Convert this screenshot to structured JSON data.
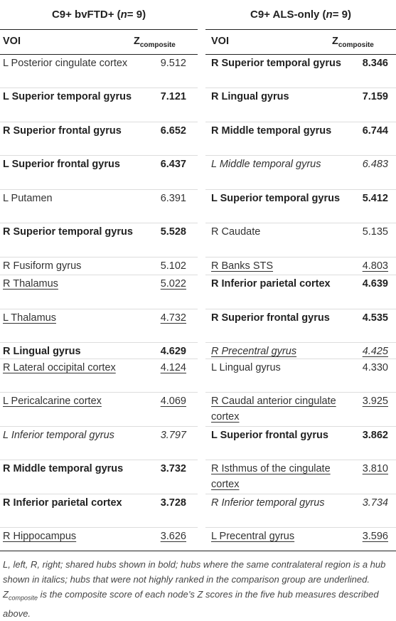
{
  "left_group": {
    "title": "C9+ bvFTD+ (",
    "n_label": "n",
    "n_value": " = 9)"
  },
  "right_group": {
    "title": "C9+ ALS-only (",
    "n_label": "n",
    "n_value": " = 9)"
  },
  "columns": {
    "voi": "VOI",
    "z": "Z",
    "z_sub": "composite"
  },
  "rows": [
    {
      "l_voi": "L Posterior cingulate cortex",
      "l_z": "9.512",
      "l_style": "",
      "r_voi": "R Superior temporal gyrus",
      "r_z": "8.346",
      "r_style": "b"
    },
    {
      "l_voi": "L Superior temporal gyrus",
      "l_z": "7.121",
      "l_style": "b",
      "r_voi": "R Lingual gyrus",
      "r_z": "7.159",
      "r_style": "b"
    },
    {
      "l_voi": "R Superior frontal gyrus",
      "l_z": "6.652",
      "l_style": "b",
      "r_voi": "R Middle temporal gyrus",
      "r_z": "6.744",
      "r_style": "b"
    },
    {
      "l_voi": "L Superior frontal gyrus",
      "l_z": "6.437",
      "l_style": "b",
      "r_voi": "L Middle temporal gyrus",
      "r_z": "6.483",
      "r_style": "i"
    },
    {
      "l_voi": "L Putamen",
      "l_z": "6.391",
      "l_style": "",
      "r_voi": "L Superior temporal gyrus",
      "r_z": "5.412",
      "r_style": "b"
    },
    {
      "l_voi": "R Superior temporal gyrus",
      "l_z": "5.528",
      "l_style": "b",
      "r_voi": "R Caudate",
      "r_z": "5.135",
      "r_style": ""
    },
    {
      "l_voi": "R Fusiform gyrus",
      "l_z": "5.102",
      "l_style": "",
      "r_voi": "R Banks STS",
      "r_z": "4.803",
      "r_style": "u"
    },
    {
      "l_voi": "R Thalamus",
      "l_z": "5.022",
      "l_style": "u",
      "r_voi": "R Inferior parietal cortex",
      "r_z": "4.639",
      "r_style": "b"
    },
    {
      "l_voi": "L Thalamus",
      "l_z": "4.732",
      "l_style": "u",
      "r_voi": "R Superior frontal gyrus",
      "r_z": "4.535",
      "r_style": "b"
    },
    {
      "l_voi": "R Lingual gyrus",
      "l_z": "4.629",
      "l_style": "b",
      "r_voi": "R Precentral gyrus",
      "r_z": "4.425",
      "r_style": "iu"
    },
    {
      "l_voi": "R Lateral occipital cortex",
      "l_z": "4.124",
      "l_style": "u",
      "r_voi": "L Lingual gyrus",
      "r_z": "4.330",
      "r_style": ""
    },
    {
      "l_voi": "L Pericalcarine cortex",
      "l_z": "4.069",
      "l_style": "u",
      "r_voi": "R Caudal anterior cingulate cortex",
      "r_z": "3.925",
      "r_style": "u"
    },
    {
      "l_voi": "L Inferior temporal gyrus",
      "l_z": "3.797",
      "l_style": "i",
      "r_voi": "L Superior frontal gyrus",
      "r_z": "3.862",
      "r_style": "b"
    },
    {
      "l_voi": "R Middle temporal gyrus",
      "l_z": "3.732",
      "l_style": "b",
      "r_voi": "R Isthmus of the cingulate cortex",
      "r_z": "3.810",
      "r_style": "u"
    },
    {
      "l_voi": "R Inferior parietal cortex",
      "l_z": "3.728",
      "l_style": "b",
      "r_voi": "R Inferior temporal gyrus",
      "r_z": "3.734",
      "r_style": "i"
    },
    {
      "l_voi": "R Hippocampus",
      "l_z": "3.626",
      "l_style": "u",
      "r_voi": "L Precentral gyrus",
      "r_z": "3.596",
      "r_style": "u"
    }
  ],
  "footnote": {
    "part1": "L, left, R, right; shared hubs shown in bold; hubs where the same contralateral region is a hub shown in italics; hubs that were not highly ranked in the comparison group are underlined. Z",
    "sub": "composite",
    "part2": " is the composite score of each node’s Z scores in the five hub measures described above."
  }
}
